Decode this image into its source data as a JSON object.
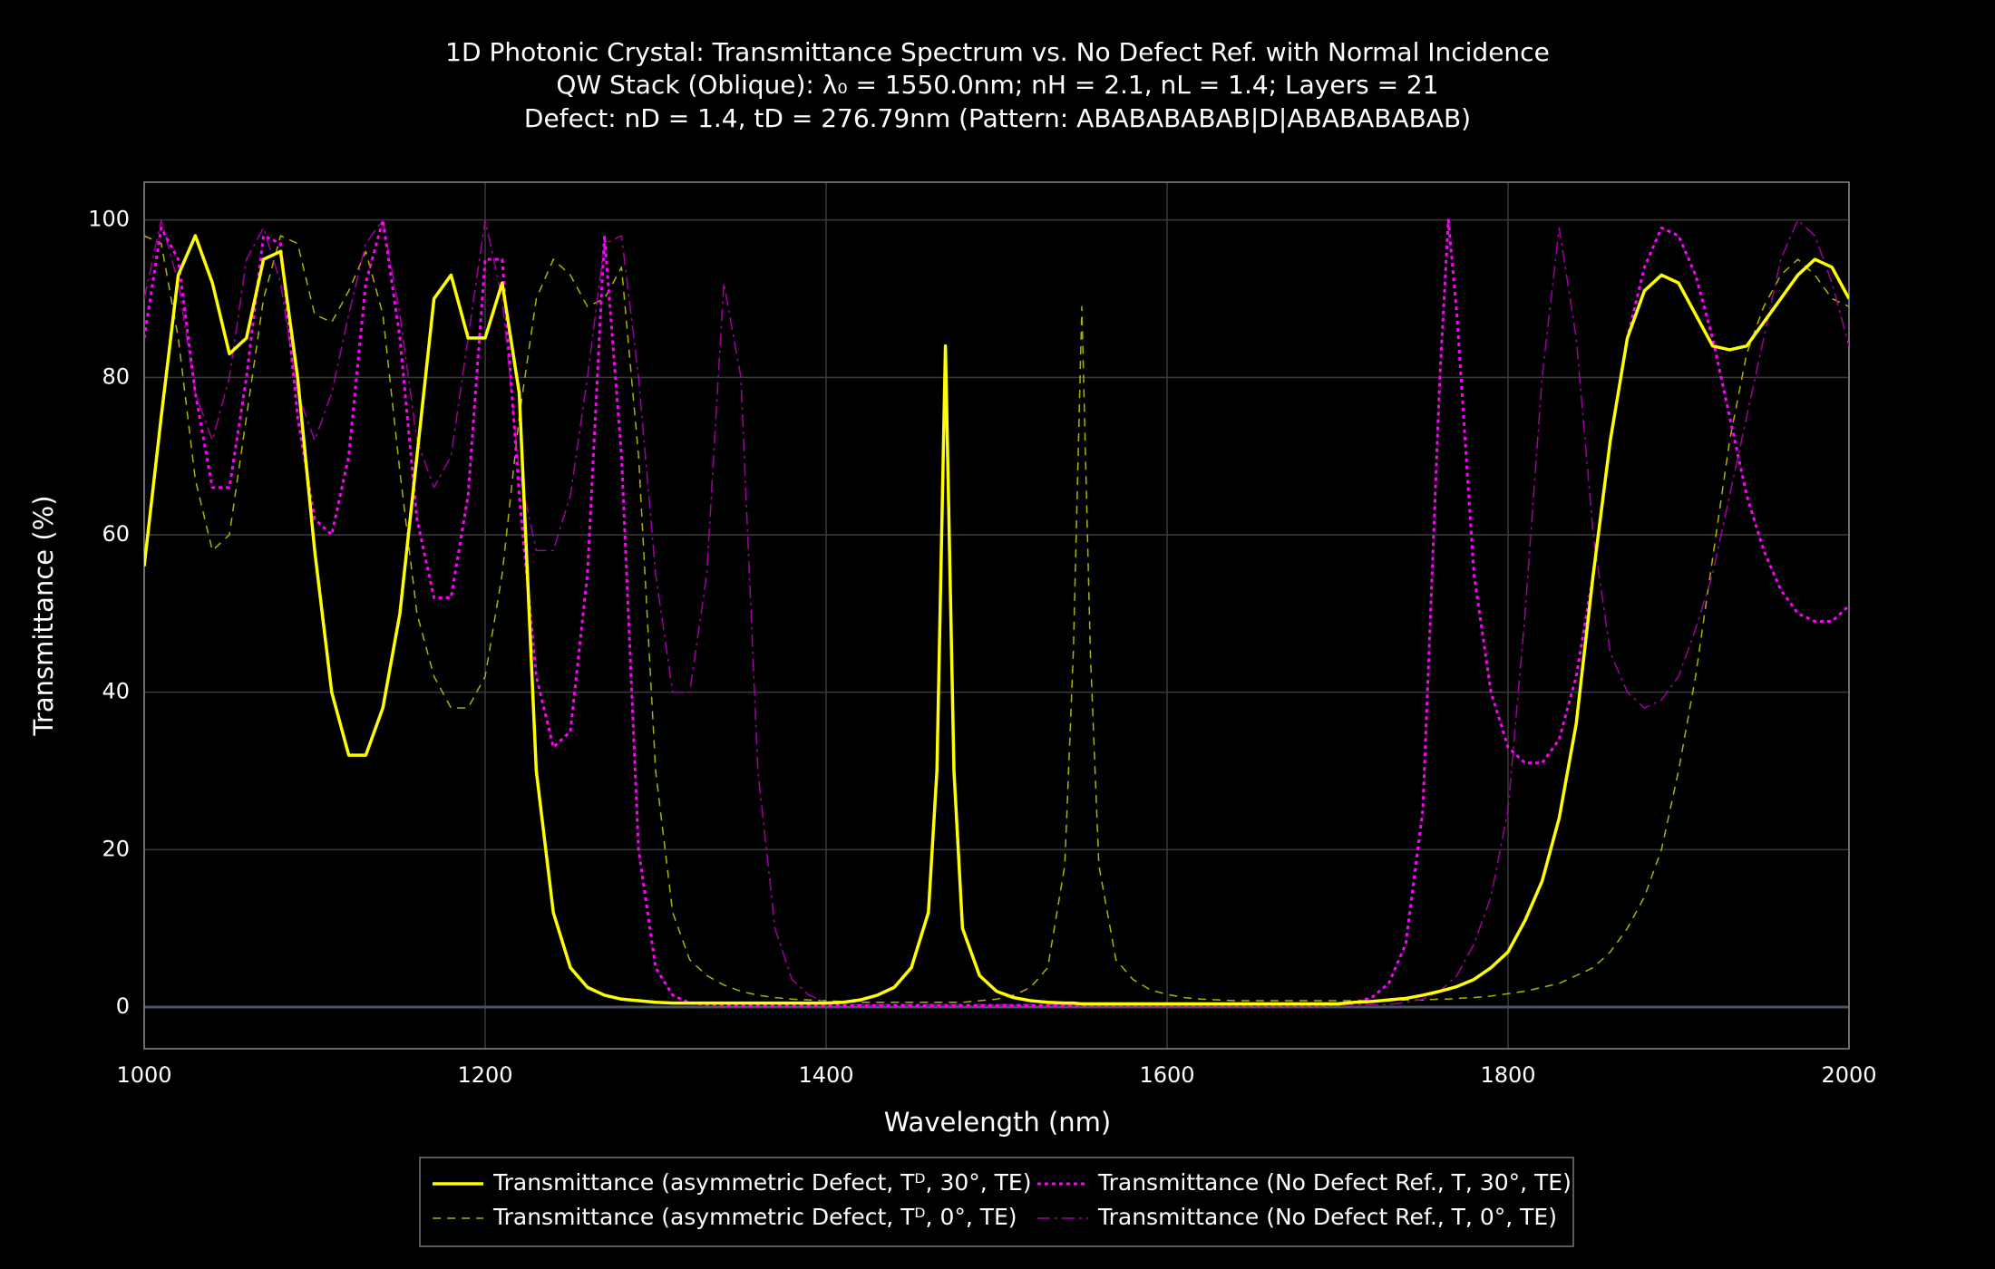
{
  "chart_data": {
    "type": "line",
    "title": [
      "1D Photonic Crystal: Transmittance Spectrum  vs. No Defect Ref. with Normal Incidence",
      "QW Stack (Oblique): λ₀ = 1550.0nm; nH = 2.1, nL = 1.4; Layers = 21",
      "Defect: nD = 1.4, tD = 276.79nm (Pattern: ABABABABAB|D|ABABABABAB)"
    ],
    "x_label": "Wavelength (nm)",
    "y_label": "Transmittance (%)",
    "xlim": [
      1000,
      2000
    ],
    "ylim": [
      -5.3,
      104.8
    ],
    "xticks": [
      1000,
      1200,
      1400,
      1600,
      1800,
      2000
    ],
    "yticks": [
      0,
      20,
      40,
      60,
      80,
      100
    ],
    "grid": true,
    "legend": "bottom",
    "x": [
      1000,
      1010,
      1020,
      1030,
      1040,
      1050,
      1060,
      1070,
      1080,
      1090,
      1100,
      1110,
      1120,
      1130,
      1140,
      1150,
      1160,
      1170,
      1180,
      1190,
      1200,
      1210,
      1220,
      1230,
      1240,
      1250,
      1260,
      1270,
      1280,
      1290,
      1300,
      1310,
      1320,
      1330,
      1340,
      1350,
      1360,
      1370,
      1380,
      1390,
      1400,
      1410,
      1420,
      1430,
      1440,
      1450,
      1460,
      1465,
      1470,
      1475,
      1480,
      1490,
      1500,
      1510,
      1520,
      1530,
      1540,
      1545,
      1550,
      1555,
      1560,
      1570,
      1580,
      1590,
      1600,
      1610,
      1620,
      1630,
      1640,
      1650,
      1660,
      1670,
      1680,
      1690,
      1700,
      1710,
      1720,
      1730,
      1740,
      1750,
      1760,
      1765,
      1770,
      1780,
      1790,
      1800,
      1810,
      1820,
      1830,
      1840,
      1850,
      1860,
      1870,
      1880,
      1890,
      1900,
      1910,
      1920,
      1930,
      1940,
      1950,
      1960,
      1970,
      1980,
      1990,
      2000
    ],
    "series": [
      {
        "name": "Transmittance (asymmetric Defect, Tᴰ, 30°, TE)",
        "color": "#ffff00",
        "dash": "solid",
        "width": 3.5,
        "values": [
          56,
          75,
          93,
          98,
          92,
          83,
          85,
          95,
          96,
          80,
          58,
          40,
          32,
          32,
          38,
          50,
          70,
          90,
          93,
          85,
          85,
          92,
          78,
          30,
          12,
          5,
          2.5,
          1.5,
          1,
          0.8,
          0.6,
          0.5,
          0.5,
          0.5,
          0.5,
          0.5,
          0.5,
          0.5,
          0.5,
          0.5,
          0.5,
          0.6,
          0.9,
          1.5,
          2.5,
          5,
          12,
          30,
          84,
          30,
          10,
          4,
          2,
          1.2,
          0.8,
          0.6,
          0.5,
          0.5,
          0.4,
          0.4,
          0.4,
          0.4,
          0.4,
          0.4,
          0.4,
          0.4,
          0.4,
          0.4,
          0.4,
          0.4,
          0.4,
          0.4,
          0.4,
          0.4,
          0.4,
          0.6,
          0.7,
          0.9,
          1.1,
          1.5,
          2,
          2.3,
          2.6,
          3.5,
          5,
          7,
          11,
          16,
          24,
          36,
          55,
          72,
          85,
          91,
          93,
          92,
          88,
          84,
          83.5,
          84,
          87,
          90,
          93,
          95,
          94,
          90
        ]
      },
      {
        "name": "Transmittance (asymmetric Defect, Tᴰ, 0°, TE)",
        "color": "#b0b000",
        "dash": "dash",
        "width": 1.5,
        "values": [
          98,
          97,
          85,
          67,
          58,
          60,
          75,
          90,
          98,
          97,
          88,
          87,
          91,
          96,
          88,
          68,
          50,
          42,
          38,
          38,
          42,
          55,
          75,
          90,
          95,
          93,
          89,
          90,
          94,
          70,
          30,
          12,
          6,
          4,
          2.8,
          2,
          1.5,
          1.2,
          1,
          0.9,
          0.8,
          0.7,
          0.6,
          0.6,
          0.6,
          0.6,
          0.6,
          0.6,
          0.6,
          0.6,
          0.6,
          0.8,
          1,
          1.5,
          2.5,
          5,
          18,
          45,
          89,
          45,
          18,
          6,
          3.5,
          2.2,
          1.6,
          1.2,
          1,
          0.9,
          0.8,
          0.8,
          0.8,
          0.8,
          0.8,
          0.8,
          0.8,
          0.8,
          0.8,
          0.8,
          0.9,
          0.9,
          1,
          1,
          1.1,
          1.2,
          1.4,
          1.7,
          2,
          2.5,
          3,
          4,
          5,
          7,
          10,
          14,
          20,
          30,
          42,
          57,
          72,
          83,
          89,
          93,
          95,
          93,
          90,
          89
        ]
      },
      {
        "name": "Transmittance (No Defect Ref., T, 30°, TE)",
        "color": "#ff00ff",
        "dash": "dot",
        "width": 3,
        "values": [
          85,
          99,
          95,
          78,
          66,
          66,
          80,
          98,
          97,
          75,
          62,
          60,
          70,
          92,
          100,
          85,
          62,
          52,
          52,
          65,
          95,
          95,
          65,
          42,
          33,
          35,
          55,
          98,
          70,
          20,
          5,
          1.5,
          0.5,
          0.3,
          0.2,
          0.2,
          0.2,
          0.2,
          0.2,
          0.2,
          0.2,
          0.2,
          0.2,
          0.2,
          0.2,
          0.2,
          0.2,
          0.2,
          0.2,
          0.2,
          0.2,
          0.2,
          0.2,
          0.2,
          0.2,
          0.2,
          0.2,
          0.2,
          0.2,
          0.2,
          0.2,
          0.2,
          0.2,
          0.2,
          0.2,
          0.2,
          0.2,
          0.2,
          0.2,
          0.2,
          0.2,
          0.2,
          0.2,
          0.2,
          0.3,
          0.6,
          1.2,
          3,
          8,
          25,
          80,
          100,
          88,
          55,
          40,
          33,
          31,
          31,
          34,
          42,
          55,
          72,
          85,
          94,
          99,
          98,
          93,
          85,
          75,
          65,
          58,
          53,
          50,
          49,
          49,
          51
        ]
      },
      {
        "name": "Transmittance (No Defect Ref., T, 0°, TE)",
        "color": "#a000a0",
        "dash": "dashdot",
        "width": 1.5,
        "values": [
          90,
          100,
          92,
          78,
          72,
          80,
          95,
          99,
          92,
          78,
          72,
          78,
          88,
          97,
          100,
          88,
          72,
          66,
          70,
          85,
          100,
          90,
          68,
          58,
          58,
          65,
          80,
          97,
          98,
          80,
          55,
          40,
          40,
          55,
          92,
          80,
          30,
          10,
          3.5,
          1.5,
          0.6,
          0.3,
          0.3,
          0.3,
          0.3,
          0.3,
          0.3,
          0.3,
          0.3,
          0.3,
          0.3,
          0.3,
          0.3,
          0.3,
          0.3,
          0.3,
          0.3,
          0.3,
          0.3,
          0.3,
          0.3,
          0.3,
          0.3,
          0.3,
          0.3,
          0.3,
          0.3,
          0.3,
          0.3,
          0.3,
          0.3,
          0.3,
          0.3,
          0.3,
          0.3,
          0.3,
          0.3,
          0.3,
          0.6,
          1,
          2,
          3,
          4,
          8,
          14,
          25,
          50,
          80,
          99,
          85,
          60,
          45,
          40,
          38,
          39,
          42,
          48,
          55,
          65,
          75,
          85,
          95,
          100,
          98,
          92,
          84
        ]
      }
    ]
  }
}
